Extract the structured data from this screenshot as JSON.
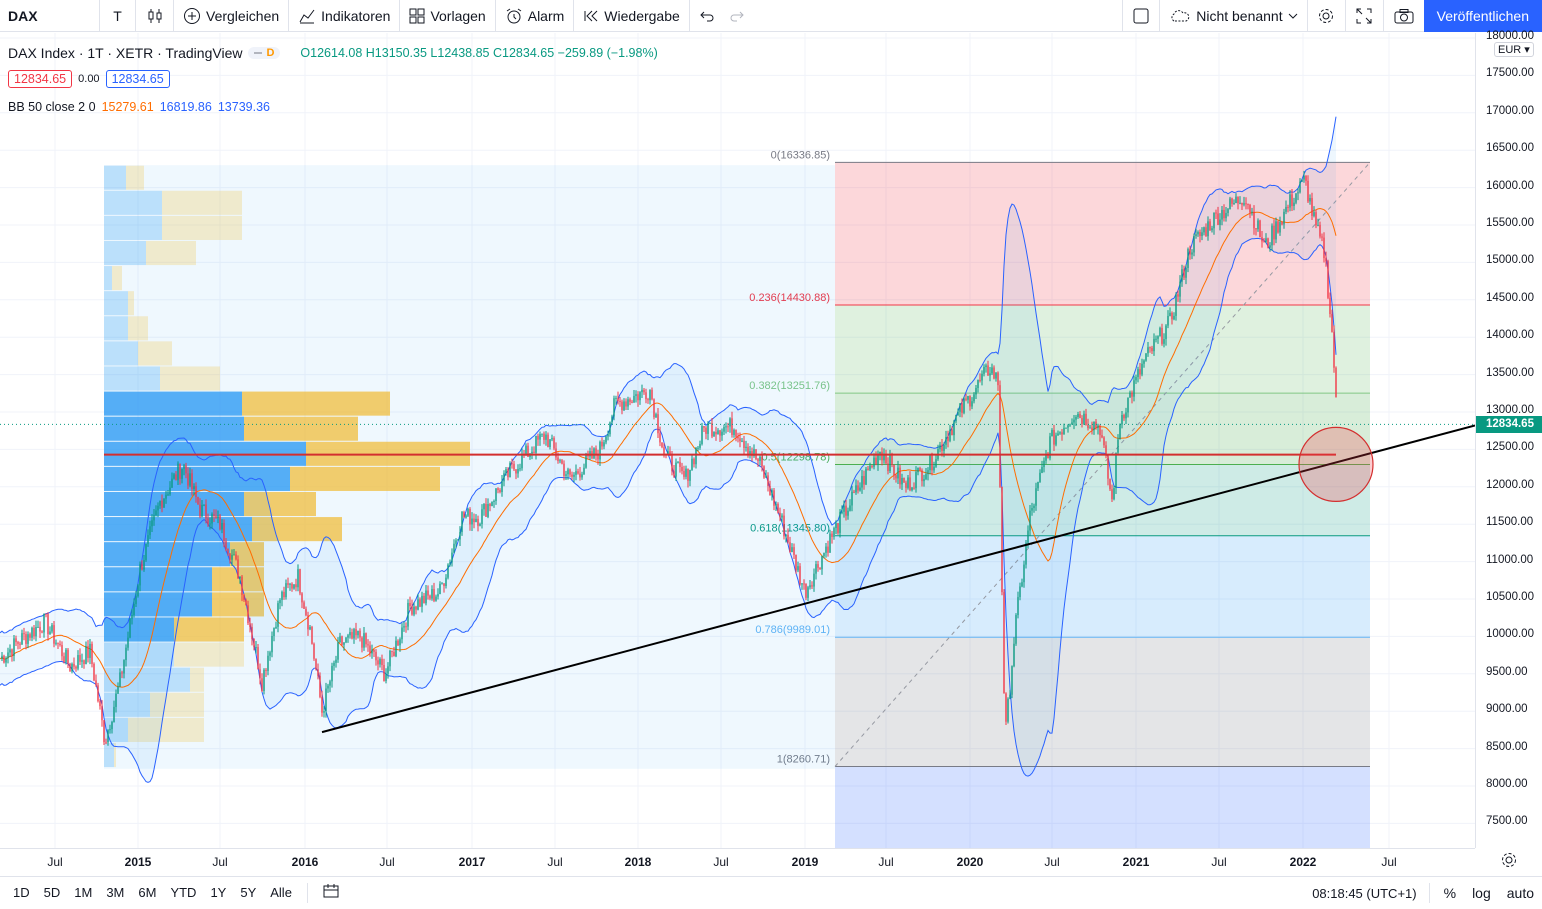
{
  "toolbar": {
    "symbol": "DAX",
    "interval": "T",
    "compare": "Vergleichen",
    "indicators": "Indikatoren",
    "templates": "Vorlagen",
    "alert": "Alarm",
    "replay": "Wiedergabe",
    "layout_name": "Nicht benannt",
    "publish": "Veröffentlichen"
  },
  "legend": {
    "title": "DAX Index · 1T · XETR · TradingView",
    "badge": "D",
    "open": "O12614.08",
    "high": "H13150.35",
    "low": "L12438.85",
    "close": "C12834.65",
    "change": "−259.89 (−1.98%)",
    "bid": "12834.65",
    "spread": "0.00",
    "ask": "12834.65",
    "bb_label": "BB 50 close 2 0",
    "bb_basis": "15279.61",
    "bb_upper": "16819.86",
    "bb_lower": "13739.36"
  },
  "colors": {
    "up": "#089981",
    "down": "#f23645",
    "bb_basis": "#ff6d00",
    "bb_band": "#2962ff",
    "accent": "#2962ff"
  },
  "price_axis": {
    "currency": "EUR",
    "ticks": [
      "18000.00",
      "17500.00",
      "17000.00",
      "16500.00",
      "16000.00",
      "15500.00",
      "15000.00",
      "14500.00",
      "14000.00",
      "13500.00",
      "13000.00",
      "12500.00",
      "12000.00",
      "11500.00",
      "11000.00",
      "10500.00",
      "10000.00",
      "9500.00",
      "9000.00",
      "8500.00",
      "8000.00",
      "7500.00"
    ],
    "last_price": "12834.65"
  },
  "time_axis": {
    "labels": [
      "Jul",
      "2015",
      "Jul",
      "2016",
      "Jul",
      "2017",
      "Jul",
      "2018",
      "Jul",
      "2019",
      "Jul",
      "2020",
      "Jul",
      "2021",
      "Jul",
      "2022",
      "Jul"
    ]
  },
  "fib_levels": [
    {
      "label": "0(16336.85)",
      "color": "#787b86"
    },
    {
      "label": "0.236(14430.88)",
      "color": "#f23645"
    },
    {
      "label": "0.382(13251.76)",
      "color": "#81c784"
    },
    {
      "label": "0.5(12298.78)",
      "color": "#4caf50"
    },
    {
      "label": "0.618(11345.80)",
      "color": "#089981"
    },
    {
      "label": "0.786(9989.01)",
      "color": "#64b5f6"
    },
    {
      "label": "1(8260.71)",
      "color": "#787b86"
    }
  ],
  "bottom": {
    "ranges": [
      "1D",
      "5D",
      "1M",
      "3M",
      "6M",
      "YTD",
      "1Y",
      "5Y",
      "Alle"
    ],
    "clock": "08:18:45 (UTC+1)",
    "percent": "%",
    "log": "log",
    "auto": "auto"
  }
}
